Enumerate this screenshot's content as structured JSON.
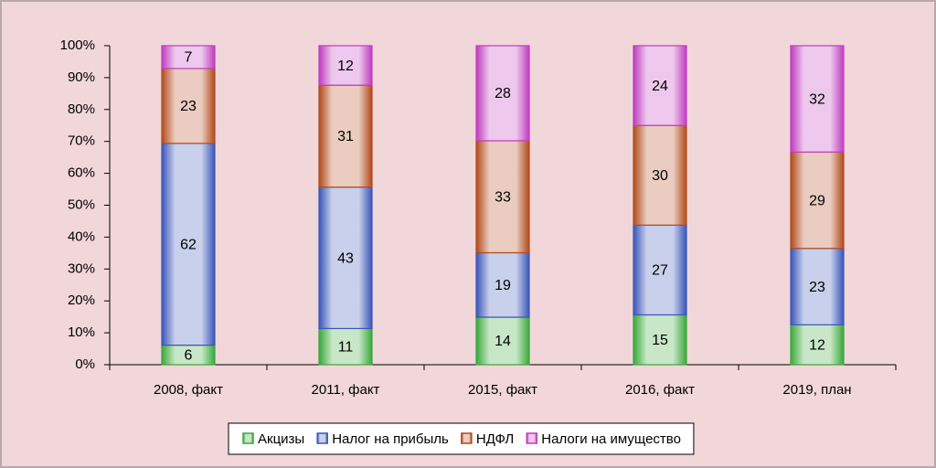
{
  "chart_data": {
    "type": "bar",
    "stacked": "percent",
    "categories": [
      "2008, факт",
      "2011, факт",
      "2015, факт",
      "2016, факт",
      "2019, план"
    ],
    "series": [
      {
        "name": "Акцизы",
        "color": "#3aa83a",
        "values": [
          6,
          11,
          14,
          15,
          12
        ]
      },
      {
        "name": "Налог на прибыль",
        "color": "#3a56b8",
        "values": [
          62,
          43,
          19,
          27,
          23
        ]
      },
      {
        "name": "НДФЛ",
        "color": "#b24a1c",
        "values": [
          23,
          31,
          33,
          30,
          29
        ]
      },
      {
        "name": "Налоги на имущество",
        "color": "#c03cc0",
        "values": [
          7,
          12,
          28,
          24,
          32
        ]
      }
    ],
    "ylim": [
      0,
      100
    ],
    "yticks": [
      {
        "value": 0,
        "label": "0%"
      },
      {
        "value": 10,
        "label": "10%"
      },
      {
        "value": 20,
        "label": "20%"
      },
      {
        "value": 30,
        "label": "30%"
      },
      {
        "value": 40,
        "label": "40%"
      },
      {
        "value": 50,
        "label": "50%"
      },
      {
        "value": 60,
        "label": "60%"
      },
      {
        "value": 70,
        "label": "70%"
      },
      {
        "value": 80,
        "label": "80%"
      },
      {
        "value": 90,
        "label": "90%"
      },
      {
        "value": 100,
        "label": "100%"
      }
    ],
    "legend": "bottom"
  }
}
